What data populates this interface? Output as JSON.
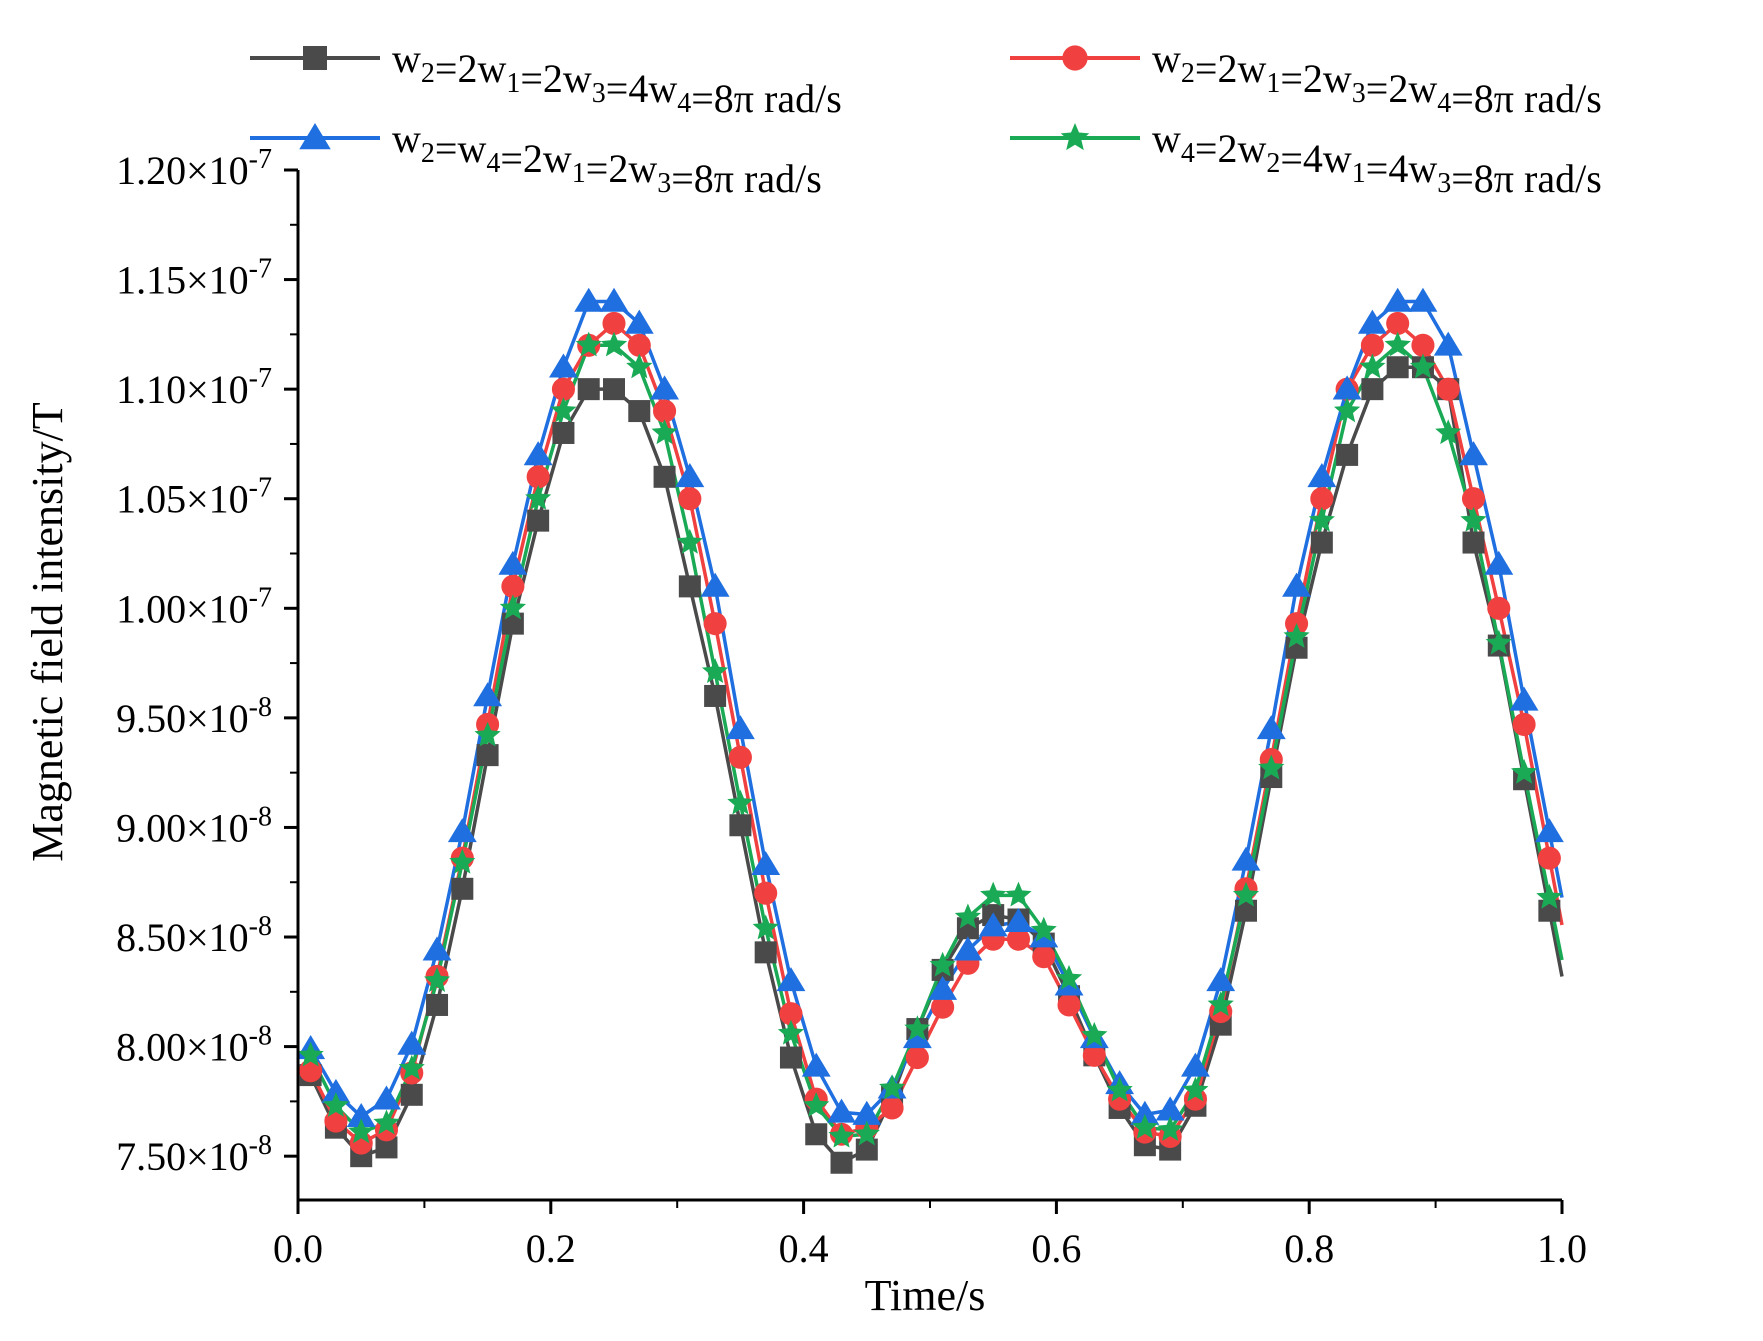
{
  "chart_data": {
    "type": "line",
    "title": "",
    "xlabel": "Time/s",
    "ylabel": "Magnetic field intensity/T",
    "xlim": [
      0.0,
      1.0
    ],
    "ylim": [
      7.3e-08,
      1.2e-07
    ],
    "x_ticks": [
      0.0,
      0.2,
      0.4,
      0.6,
      0.8,
      1.0
    ],
    "x_tick_labels": [
      "0.0",
      "0.2",
      "0.4",
      "0.6",
      "0.8",
      "1.0"
    ],
    "y_ticks": [
      7.5e-08,
      8e-08,
      8.5e-08,
      9e-08,
      9.5e-08,
      1e-07,
      1.05e-07,
      1.1e-07,
      1.15e-07,
      1.2e-07
    ],
    "y_tick_labels": [
      {
        "mantissa": "7.50",
        "exp": "-8"
      },
      {
        "mantissa": "8.00",
        "exp": "-8"
      },
      {
        "mantissa": "8.50",
        "exp": "-8"
      },
      {
        "mantissa": "9.00",
        "exp": "-8"
      },
      {
        "mantissa": "9.50",
        "exp": "-8"
      },
      {
        "mantissa": "1.00",
        "exp": "-7"
      },
      {
        "mantissa": "1.05",
        "exp": "-7"
      },
      {
        "mantissa": "1.10",
        "exp": "-7"
      },
      {
        "mantissa": "1.15",
        "exp": "-7"
      },
      {
        "mantissa": "1.20",
        "exp": "-7"
      }
    ],
    "times_symbol": "×10",
    "legend_position": "top",
    "series": [
      {
        "name": "w2=2w1=2w3=4w4=8π rad/s",
        "label_parts": [
          [
            "w",
            "2"
          ],
          [
            "=2w",
            "1"
          ],
          [
            "=2w",
            "3"
          ],
          [
            "=4w",
            "4"
          ],
          [
            "=8π rad/s",
            ""
          ]
        ],
        "color": "#4a4a4a",
        "marker": "square",
        "peaks": [
          1.1e-07,
          8.6e-08,
          1.11e-07
        ],
        "troughs": [
          7.5e-08,
          7.47e-08,
          7.53e-08
        ]
      },
      {
        "name": "w2=2w1=2w3=2w4=8π rad/s",
        "label_parts": [
          [
            "w",
            "2"
          ],
          [
            "=2w",
            "1"
          ],
          [
            "=2w",
            "3"
          ],
          [
            "=2w",
            "4"
          ],
          [
            "=8π rad/s",
            ""
          ]
        ],
        "color": "#f04040",
        "marker": "circle",
        "peaks": [
          1.13e-07,
          8.5e-08,
          1.13e-07
        ],
        "troughs": [
          7.56e-08,
          7.6e-08,
          7.58e-08
        ]
      },
      {
        "name": "w2=w4=2w1=2w3=8π rad/s",
        "label_parts": [
          [
            "w",
            "2"
          ],
          [
            "=w",
            "4"
          ],
          [
            "=2w",
            "1"
          ],
          [
            "=2w",
            "3"
          ],
          [
            "=8π rad/s",
            ""
          ]
        ],
        "color": "#1f6fe0",
        "marker": "triangle",
        "peaks": [
          1.14e-07,
          8.57e-08,
          1.14e-07
        ],
        "troughs": [
          7.68e-08,
          7.68e-08,
          7.68e-08
        ]
      },
      {
        "name": "w4=2w2=4w1=4w3=8π rad/s",
        "label_parts": [
          [
            "w",
            "4"
          ],
          [
            "=2w",
            "2"
          ],
          [
            "=4w",
            "1"
          ],
          [
            "=4w",
            "3"
          ],
          [
            "=8π rad/s",
            ""
          ]
        ],
        "color": "#1aaa55",
        "marker": "star",
        "peaks": [
          1.12e-07,
          8.7e-08,
          1.12e-07
        ],
        "troughs": [
          7.6e-08,
          7.58e-08,
          7.62e-08
        ]
      }
    ],
    "x_points": [
      0.01,
      0.03,
      0.05,
      0.07,
      0.09,
      0.11,
      0.13,
      0.15,
      0.17,
      0.19,
      0.21,
      0.23,
      0.25,
      0.27,
      0.29,
      0.31,
      0.33,
      0.35,
      0.37,
      0.39,
      0.41,
      0.43,
      0.45,
      0.47,
      0.49,
      0.51,
      0.53,
      0.55,
      0.57,
      0.59,
      0.61,
      0.63,
      0.65,
      0.67,
      0.69,
      0.71,
      0.73,
      0.75,
      0.77,
      0.79,
      0.81,
      0.83,
      0.85,
      0.87,
      0.89,
      0.91,
      0.93,
      0.95,
      0.97,
      0.99
    ],
    "values": {
      "series_0": [
        7.87e-08,
        7.63e-08,
        7.5e-08,
        7.54e-08,
        7.78e-08,
        8.19e-08,
        8.72e-08,
        9.33e-08,
        9.93e-08,
        1.04e-07,
        1.08e-07,
        1.1e-07,
        1.1e-07,
        1.09e-07,
        1.06e-07,
        1.01e-07,
        9.6e-08,
        9.01e-08,
        8.43e-08,
        7.95e-08,
        7.6e-08,
        7.47e-08,
        7.53e-08,
        7.77e-08,
        8.08e-08,
        8.35e-08,
        8.54e-08,
        8.6e-08,
        8.58e-08,
        8.47e-08,
        8.23e-08,
        7.96e-08,
        7.72e-08,
        7.55e-08,
        7.53e-08,
        7.73e-08,
        8.1e-08,
        8.62e-08,
        9.23e-08,
        9.82e-08,
        1.03e-07,
        1.07e-07,
        1.1e-07,
        1.11e-07,
        1.11e-07,
        1.1e-07,
        1.03e-07,
        9.83e-08,
        9.22e-08,
        8.62e-08
      ],
      "series_1": [
        7.89e-08,
        7.66e-08,
        7.56e-08,
        7.62e-08,
        7.88e-08,
        8.32e-08,
        8.86e-08,
        9.47e-08,
        1.01e-07,
        1.06e-07,
        1.1e-07,
        1.12e-07,
        1.13e-07,
        1.12e-07,
        1.09e-07,
        1.05e-07,
        9.93e-08,
        9.32e-08,
        8.7e-08,
        8.15e-08,
        7.76e-08,
        7.6e-08,
        7.63e-08,
        7.72e-08,
        7.95e-08,
        8.18e-08,
        8.38e-08,
        8.49e-08,
        8.49e-08,
        8.41e-08,
        8.19e-08,
        7.96e-08,
        7.76e-08,
        7.61e-08,
        7.59e-08,
        7.76e-08,
        8.16e-08,
        8.72e-08,
        9.31e-08,
        9.93e-08,
        1.05e-07,
        1.1e-07,
        1.12e-07,
        1.13e-07,
        1.12e-07,
        1.1e-07,
        1.05e-07,
        1e-07,
        9.47e-08,
        8.86e-08
      ],
      "series_2": [
        7.99e-08,
        7.79e-08,
        7.68e-08,
        7.76e-08,
        8.01e-08,
        8.44e-08,
        8.98e-08,
        9.6e-08,
        1.02e-07,
        1.07e-07,
        1.11e-07,
        1.14e-07,
        1.14e-07,
        1.13e-07,
        1.1e-07,
        1.06e-07,
        1.01e-07,
        9.45e-08,
        8.83e-08,
        8.3e-08,
        7.91e-08,
        7.7e-08,
        7.69e-08,
        7.81e-08,
        8.04e-08,
        8.26e-08,
        8.44e-08,
        8.55e-08,
        8.57e-08,
        8.5e-08,
        8.28e-08,
        8.04e-08,
        7.83e-08,
        7.69e-08,
        7.71e-08,
        7.91e-08,
        8.3e-08,
        8.85e-08,
        9.45e-08,
        1.01e-07,
        1.06e-07,
        1.1e-07,
        1.13e-07,
        1.14e-07,
        1.14e-07,
        1.12e-07,
        1.07e-07,
        1.02e-07,
        9.58e-08,
        8.98e-08
      ],
      "series_3": [
        7.96e-08,
        7.73e-08,
        7.61e-08,
        7.65e-08,
        7.9e-08,
        8.3e-08,
        8.84e-08,
        9.42e-08,
        1e-07,
        1.05e-07,
        1.09e-07,
        1.12e-07,
        1.12e-07,
        1.11e-07,
        1.08e-07,
        1.03e-07,
        9.71e-08,
        9.11e-08,
        8.54e-08,
        8.06e-08,
        7.73e-08,
        7.59e-08,
        7.6e-08,
        7.81e-08,
        8.08e-08,
        8.37e-08,
        8.59e-08,
        8.69e-08,
        8.69e-08,
        8.53e-08,
        8.31e-08,
        8.05e-08,
        7.8e-08,
        7.63e-08,
        7.62e-08,
        7.8e-08,
        8.19e-08,
        8.69e-08,
        9.27e-08,
        9.87e-08,
        1.04e-07,
        1.09e-07,
        1.11e-07,
        1.12e-07,
        1.11e-07,
        1.08e-07,
        1.04e-07,
        9.84e-08,
        9.25e-08,
        8.68e-08
      ]
    }
  }
}
